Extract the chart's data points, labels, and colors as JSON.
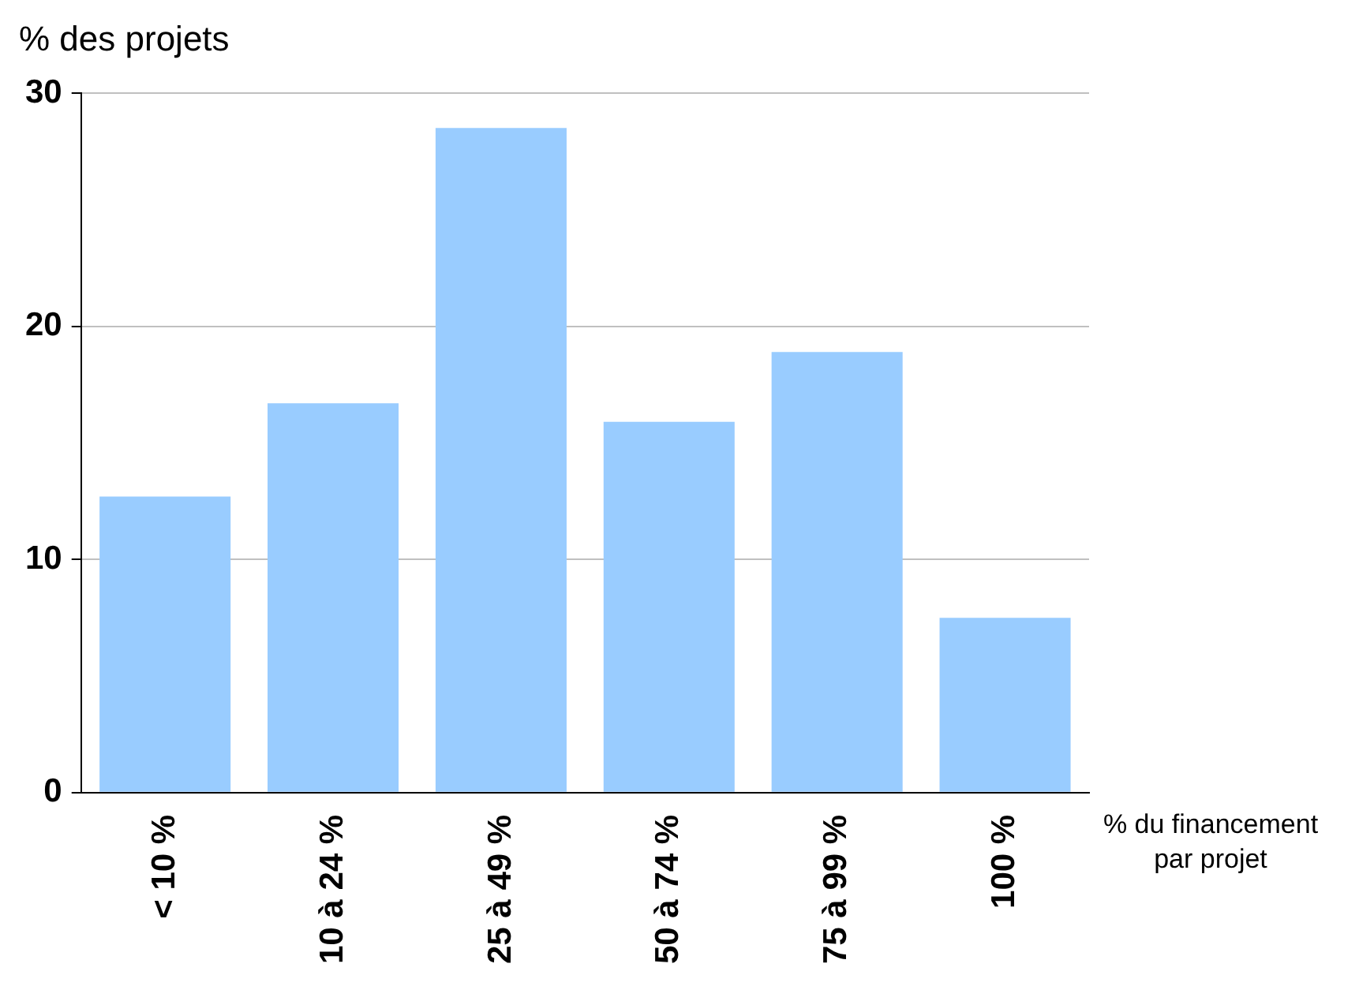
{
  "chart_data": {
    "type": "bar",
    "ylabel": "% des projets",
    "xlabel": "% du financement par projet",
    "categories": [
      "< 10 %",
      "10 à 24 %",
      "25 à 49 %",
      "50 à 74 %",
      "75 à 99 %",
      "100 %"
    ],
    "values": [
      12.7,
      16.7,
      28.5,
      15.9,
      18.9,
      7.5
    ],
    "color": "#99ccff",
    "ylim": [
      0,
      30
    ],
    "yticks": [
      0,
      10,
      20,
      30
    ],
    "grid": "y",
    "legend": false
  }
}
